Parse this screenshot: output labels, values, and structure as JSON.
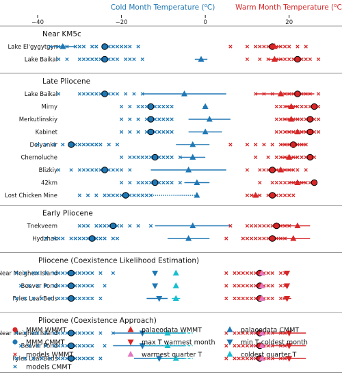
{
  "chart_data": {
    "type": "scatter",
    "x_axis": {
      "range": [
        -48,
        30
      ],
      "ticks": [
        -40,
        -20,
        0,
        20
      ],
      "cold_title": "Cold Month Temperature (°C)",
      "warm_title": "Warm Month Temperature (°C)"
    },
    "sections": [
      {
        "title": "Near KM5c",
        "rows": [
          {
            "label": "Lake El'gygytgyn",
            "models_cmmt": [
              -37,
              -35,
              -34,
              -33,
              -31,
              -30,
              -29,
              -27,
              -26,
              -24,
              -23,
              -22,
              -21,
              -20,
              -19,
              -18,
              -16
            ],
            "mmm_cmmt": -24,
            "models_wmmt": [
              6,
              10,
              12,
              13,
              14,
              15,
              16,
              17,
              18,
              19,
              20,
              22,
              24
            ],
            "mmm_wmmt": 16,
            "palaeo_wmmt": {
              "v": 16.5,
              "lo": 15,
              "hi": 18
            },
            "palaeo_cmmt": {
              "v": -34,
              "lo": -37,
              "hi": -31
            }
          },
          {
            "label": "Lake Baikal",
            "models_cmmt": [
              -35,
              -33,
              -30,
              -29,
              -28,
              -27,
              -26,
              -25,
              -24,
              -23,
              -22,
              -21,
              -19,
              -18,
              -17,
              -15
            ],
            "mmm_cmmt": -24,
            "models_wmmt": [
              10,
              13,
              15,
              17,
              18,
              19,
              20,
              21,
              22,
              23,
              24,
              25,
              27
            ],
            "mmm_wmmt": 22,
            "palaeo_wmmt": {
              "v": 16.5,
              "lo": 15,
              "hi": 18.5
            },
            "palaeo_cmmt": {
              "v": -1,
              "lo": -2.5,
              "hi": 0.5
            }
          }
        ]
      },
      {
        "title": "Late Pliocene",
        "rows": [
          {
            "label": "Lake Baikal",
            "models_cmmt": [
              -35,
              -30,
              -29,
              -28,
              -27,
              -26,
              -25,
              -24,
              -23,
              -22,
              -21,
              -19,
              -17,
              -15
            ],
            "mmm_cmmt": -24,
            "models_wmmt": [
              12,
              14,
              16,
              18,
              19,
              20,
              21,
              22,
              23,
              24,
              25,
              27
            ],
            "mmm_wmmt": 22,
            "palaeo_wmmt": {
              "v": 18,
              "lo": 12,
              "hi": 26
            },
            "palaeo_cmmt": {
              "v": -5,
              "lo": -15,
              "hi": 5
            }
          },
          {
            "label": "Mirny",
            "models_cmmt": [
              -20,
              -18,
              -16,
              -15,
              -14,
              -13,
              -12,
              -11,
              -10,
              -9,
              -8
            ],
            "mmm_cmmt": -13,
            "models_wmmt": [
              17,
              18,
              19,
              20,
              21,
              22,
              23,
              24,
              25,
              26,
              27
            ],
            "mmm_wmmt": 26,
            "palaeo_wmmt": {
              "v": 20.5,
              "lo": 19,
              "hi": 22
            },
            "palaeo_cmmt": {
              "v": 0,
              "lo": -0.5,
              "hi": 0.5
            }
          },
          {
            "label": "Merkutlinskiy",
            "models_cmmt": [
              -20,
              -18,
              -16,
              -14,
              -13,
              -12,
              -11,
              -10,
              -9,
              -8
            ],
            "mmm_cmmt": -13,
            "models_wmmt": [
              17,
              18,
              19,
              20,
              21,
              22,
              23,
              24,
              25,
              26,
              27
            ],
            "mmm_wmmt": 25,
            "palaeo_wmmt": {
              "v": 20.5,
              "lo": 18.5,
              "hi": 22.5
            },
            "palaeo_cmmt": {
              "v": 1,
              "lo": -4,
              "hi": 6
            }
          },
          {
            "label": "Kabinet",
            "models_cmmt": [
              -20,
              -18,
              -16,
              -14,
              -13,
              -12,
              -11,
              -10,
              -9,
              -8
            ],
            "mmm_cmmt": -13,
            "models_wmmt": [
              17,
              18,
              19,
              20,
              21,
              22,
              23,
              24,
              25,
              26,
              27
            ],
            "mmm_wmmt": 25,
            "palaeo_wmmt": {
              "v": 22,
              "lo": 19,
              "hi": 25
            },
            "palaeo_cmmt": {
              "v": 0,
              "lo": -4,
              "hi": 4
            }
          },
          {
            "label": "Delyankir",
            "models_cmmt": [
              -40,
              -38,
              -36,
              -34,
              -32,
              -31,
              -30,
              -29,
              -28,
              -27,
              -26,
              -25,
              -23,
              -21
            ],
            "mmm_cmmt": -32,
            "models_wmmt": [
              6,
              10,
              12,
              14,
              16,
              18,
              19,
              20,
              21,
              22,
              23,
              24
            ],
            "mmm_wmmt": 21,
            "palaeo_wmmt": {
              "v": 21,
              "lo": 18,
              "hi": 24
            },
            "palaeo_cmmt": {
              "v": -3,
              "lo": -7,
              "hi": 1
            }
          },
          {
            "label": "Chernoluche",
            "models_cmmt": [
              -20,
              -18,
              -17,
              -16,
              -15,
              -14,
              -13,
              -12,
              -11,
              -10,
              -9,
              -8,
              -6
            ],
            "mmm_cmmt": -12,
            "models_wmmt": [
              12,
              15,
              17,
              18,
              19,
              20,
              21,
              22,
              23,
              24,
              25,
              26
            ],
            "mmm_wmmt": 25,
            "palaeo_wmmt": {
              "v": 20,
              "lo": 18,
              "hi": 22
            },
            "palaeo_cmmt": {
              "v": -3,
              "lo": -6,
              "hi": 0
            }
          },
          {
            "label": "Blizkiy",
            "models_cmmt": [
              -35,
              -32,
              -30,
              -29,
              -28,
              -27,
              -26,
              -25,
              -24,
              -23,
              -22,
              -21,
              -20,
              -18
            ],
            "mmm_cmmt": -24,
            "models_wmmt": [
              10,
              13,
              14,
              15,
              16,
              17,
              18,
              19,
              20,
              21,
              22,
              24
            ],
            "mmm_wmmt": 16,
            "palaeo_wmmt": {
              "v": 18,
              "lo": 15,
              "hi": 21
            },
            "palaeo_cmmt": {
              "v": -4,
              "lo": -13,
              "hi": 5
            }
          },
          {
            "label": "42km",
            "models_cmmt": [
              -20,
              -18,
              -16,
              -15,
              -14,
              -13,
              -12,
              -11,
              -10,
              -9,
              -8,
              -6
            ],
            "mmm_cmmt": -12,
            "models_wmmt": [
              13,
              16,
              17,
              18,
              19,
              20,
              21,
              22,
              23,
              24,
              25,
              26
            ],
            "mmm_wmmt": 26,
            "palaeo_wmmt": {
              "v": 22,
              "lo": 20,
              "hi": 24
            },
            "palaeo_cmmt": {
              "v": -2,
              "lo": -5,
              "hi": 1
            }
          },
          {
            "label": "Lost Chicken Mine",
            "models_cmmt": [
              -30,
              -28,
              -26,
              -24,
              -23,
              -22,
              -21,
              -20,
              -19,
              -18,
              -17,
              -16,
              -15,
              -14,
              -13
            ],
            "mmm_cmmt": -19,
            "models_wmmt": [
              10,
              11,
              13,
              15,
              16,
              17,
              18,
              19,
              20,
              21
            ],
            "mmm_wmmt": 16,
            "palaeo_wmmt": {
              "v": 12,
              "lo": 11,
              "hi": 13
            },
            "palaeo_cmmt": {
              "v": -2,
              "lo": -13,
              "hi": -2,
              "dotted": true
            }
          }
        ]
      },
      {
        "title": "Early Pliocene",
        "rows": [
          {
            "label": "Tnekveem",
            "models_cmmt": [
              -30,
              -29,
              -28,
              -26,
              -25,
              -24,
              -23,
              -22,
              -21,
              -20,
              -18,
              -16,
              -13
            ],
            "mmm_cmmt": -22,
            "models_wmmt": [
              6,
              10,
              11,
              12,
              13,
              14,
              15,
              16,
              17,
              18,
              19,
              20
            ],
            "mmm_wmmt": 17,
            "palaeo_wmmt": {
              "v": 22,
              "lo": 17,
              "hi": 25
            },
            "palaeo_cmmt": {
              "v": -3,
              "lo": -12,
              "hi": 6
            }
          },
          {
            "label": "Hydzhak",
            "models_cmmt": [
              -38,
              -36,
              -35,
              -34,
              -32,
              -31,
              -30,
              -29,
              -28,
              -27,
              -26,
              -25,
              -24,
              -22,
              -21
            ],
            "mmm_cmmt": -27,
            "models_wmmt": [
              5,
              9,
              10,
              11,
              12,
              13,
              14,
              15,
              16,
              17,
              18,
              19
            ],
            "mmm_wmmt": 16,
            "palaeo_wmmt": {
              "v": 21,
              "lo": 16,
              "hi": 25
            },
            "palaeo_cmmt": {
              "v": -4,
              "lo": -9,
              "hi": 1
            }
          }
        ]
      },
      {
        "title": "Pliocene (Coexistence Likelihood Estimation)",
        "rows": [
          {
            "label": "Near Meighen Island",
            "models_cmmt": [
              -45,
              -43,
              -41,
              -40,
              -38,
              -36,
              -35,
              -34,
              -33,
              -32,
              -31,
              -30,
              -29,
              -28,
              -27,
              -25,
              -22
            ],
            "mmm_cmmt": -32,
            "models_wmmt": [
              5,
              7,
              8,
              9,
              10,
              11,
              12,
              13,
              14,
              15,
              16,
              18,
              19
            ],
            "mmm_wmmt": 13,
            "max_t_warmest": 19.5,
            "warmest_quarter": 13.5,
            "min_t_coldest": -12,
            "coldest_quarter": -7
          },
          {
            "label": "Beaver Pond",
            "models_cmmt": [
              -44,
              -42,
              -40,
              -38,
              -36,
              -35,
              -34,
              -33,
              -32,
              -31,
              -30,
              -29,
              -28,
              -27,
              -24
            ],
            "mmm_cmmt": -32,
            "models_wmmt": [
              5,
              7,
              8,
              9,
              10,
              11,
              12,
              13,
              14,
              15,
              16,
              18,
              19
            ],
            "mmm_wmmt": 13,
            "max_t_warmest": 19.5,
            "warmest_quarter": 13.5,
            "min_t_coldest": -12,
            "coldest_quarter": -7
          },
          {
            "label": "Fyles Leaf Beds",
            "models_cmmt": [
              -45,
              -43,
              -41,
              -39,
              -37,
              -35,
              -34,
              -33,
              -32,
              -31,
              -30,
              -29,
              -28,
              -27,
              -25
            ],
            "mmm_cmmt": -32,
            "models_wmmt": [
              5,
              7,
              8,
              9,
              10,
              11,
              12,
              13,
              14,
              15,
              16,
              18,
              19
            ],
            "mmm_wmmt": 13,
            "max_t_warmest": {
              "v": 19.5,
              "lo": 18.5,
              "hi": 20.5
            },
            "warmest_quarter": 13.5,
            "min_t_coldest": {
              "v": -11,
              "lo": -14,
              "hi": -9
            },
            "coldest_quarter": {
              "v": -7,
              "lo": -8,
              "hi": -6
            }
          }
        ]
      },
      {
        "title": "Pliocene (Coexistence Approach)",
        "rows": [
          {
            "label": "Near Meighen Island",
            "models_cmmt": [
              -45,
              -43,
              -41,
              -40,
              -38,
              -36,
              -35,
              -34,
              -33,
              -32,
              -31,
              -30,
              -29,
              -28,
              -27,
              -25,
              -22
            ],
            "mmm_cmmt": -32,
            "models_wmmt": [
              5,
              7,
              8,
              9,
              10,
              11,
              12,
              13,
              14,
              15,
              16,
              18,
              19
            ],
            "mmm_wmmt": 13,
            "max_t_warmest": {
              "v": 20,
              "lo": 16,
              "hi": 24
            },
            "warmest_quarter": {
              "v": 13.5,
              "lo": 11,
              "hi": 16
            },
            "min_t_coldest": {
              "v": -15,
              "lo": -22,
              "hi": -5
            },
            "coldest_quarter": {
              "v": -9,
              "lo": -15,
              "hi": -3
            }
          },
          {
            "label": "Beaver Pond",
            "models_cmmt": [
              -44,
              -42,
              -40,
              -38,
              -36,
              -35,
              -34,
              -33,
              -32,
              -31,
              -30,
              -29,
              -28,
              -27,
              -24
            ],
            "mmm_cmmt": -32,
            "models_wmmt": [
              5,
              7,
              8,
              9,
              10,
              11,
              12,
              13,
              14,
              15,
              16,
              18,
              19
            ],
            "mmm_wmmt": 13,
            "max_t_warmest": {
              "v": 20,
              "lo": 16,
              "hi": 24
            },
            "warmest_quarter": {
              "v": 13.5,
              "lo": 11,
              "hi": 16
            },
            "min_t_coldest": {
              "v": -15,
              "lo": -22,
              "hi": -5
            },
            "coldest_quarter": {
              "v": -9,
              "lo": -15,
              "hi": -3
            }
          },
          {
            "label": "Fyles Leaf Beds",
            "models_cmmt": [
              -45,
              -43,
              -41,
              -39,
              -37,
              -35,
              -34,
              -33,
              -32,
              -31,
              -30,
              -29,
              -28,
              -27,
              -25
            ],
            "mmm_cmmt": -32,
            "models_wmmt": [
              5,
              7,
              8,
              9,
              10,
              11,
              12,
              13,
              14,
              15,
              16,
              18,
              19
            ],
            "mmm_wmmt": 13,
            "max_t_warmest": {
              "v": 20,
              "lo": 16,
              "hi": 24
            },
            "warmest_quarter": {
              "v": 13.5,
              "lo": 11,
              "hi": 16
            },
            "min_t_coldest": {
              "v": -11,
              "lo": -17,
              "hi": -5
            },
            "coldest_quarter": {
              "v": -7,
              "lo": -13,
              "hi": -3
            }
          }
        ]
      }
    ],
    "legend": [
      {
        "key": "mmm_wmmt",
        "label": "MMM WMMT"
      },
      {
        "key": "palaeo_wmmt",
        "label": "palaeodata WMMT"
      },
      {
        "key": "palaeo_cmmt",
        "label": "palaeodata CMMT"
      },
      {
        "key": "mmm_cmmt",
        "label": "MMM CMMT"
      },
      {
        "key": "max_t_warmest",
        "label": "max T warmest month"
      },
      {
        "key": "min_t_coldest",
        "label": "min T coldest month"
      },
      {
        "key": "models_wmmt",
        "label": "models WMMT"
      },
      {
        "key": "warmest_quarter",
        "label": "warmest quarter T"
      },
      {
        "key": "coldest_quarter",
        "label": "coldest quarter T"
      },
      {
        "key": "models_cmmt",
        "label": "models CMMT"
      }
    ],
    "colors": {
      "cold": "#1f77b4",
      "warm": "#d62728",
      "warm_dark": "#b22222",
      "pink": "#e377c2",
      "cyan": "#17becf",
      "axis": "#999999",
      "mmm_edge": "#000000"
    }
  }
}
